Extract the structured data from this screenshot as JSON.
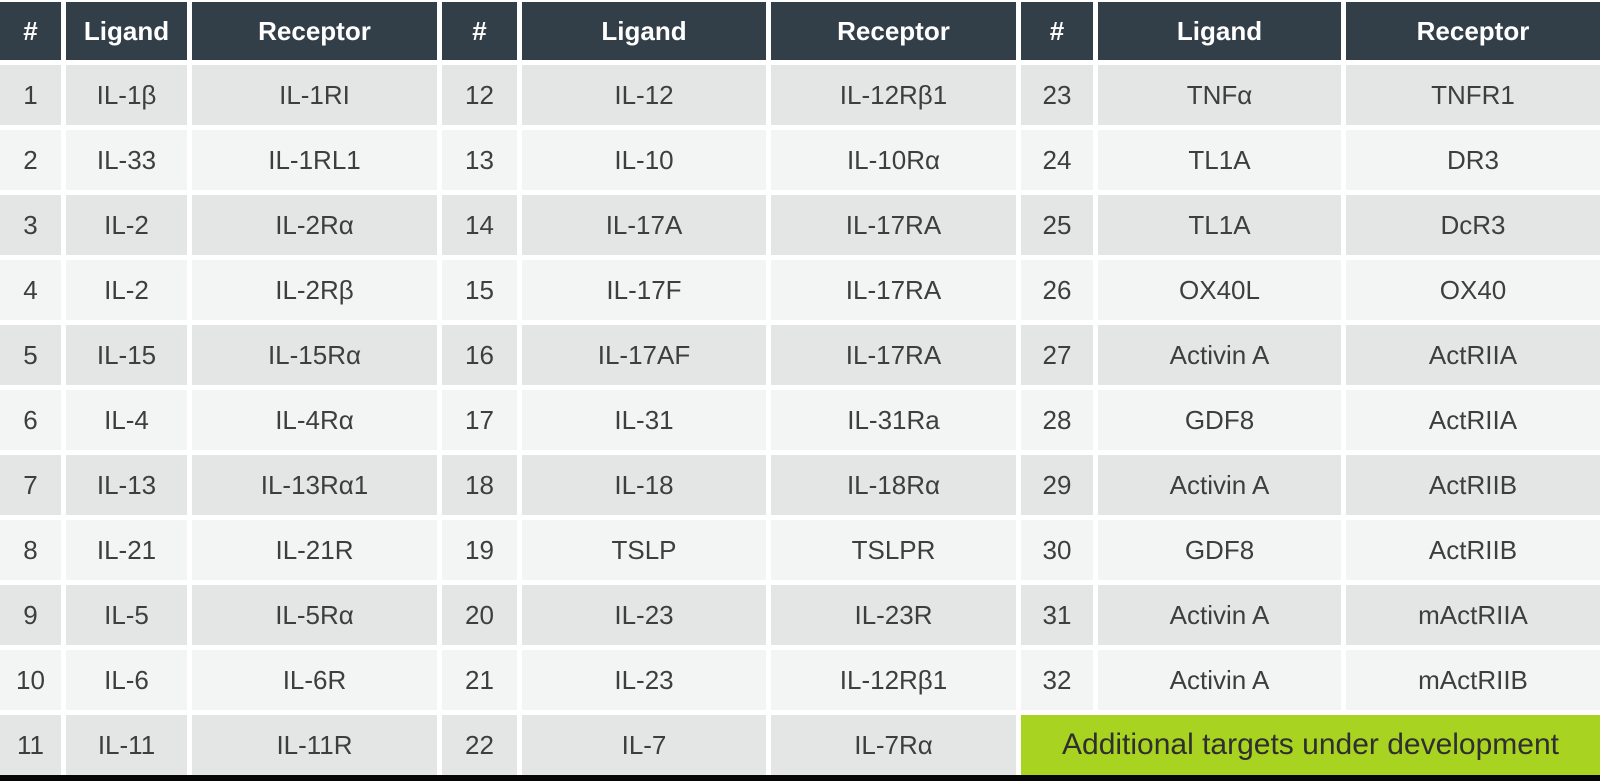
{
  "columns": [
    "#",
    "Ligand",
    "Receptor"
  ],
  "groups": [
    {
      "rows": [
        [
          "1",
          "IL-1β",
          "IL-1RI"
        ],
        [
          "2",
          "IL-33",
          "IL-1RL1"
        ],
        [
          "3",
          "IL-2",
          "IL-2Rα"
        ],
        [
          "4",
          "IL-2",
          "IL-2Rβ"
        ],
        [
          "5",
          "IL-15",
          "IL-15Rα"
        ],
        [
          "6",
          "IL-4",
          "IL-4Rα"
        ],
        [
          "7",
          "IL-13",
          "IL-13Rα1"
        ],
        [
          "8",
          "IL-21",
          "IL-21R"
        ],
        [
          "9",
          "IL-5",
          "IL-5Rα"
        ],
        [
          "10",
          "IL-6",
          "IL-6R"
        ],
        [
          "11",
          "IL-11",
          "IL-11R"
        ]
      ]
    },
    {
      "rows": [
        [
          "12",
          "IL-12",
          "IL-12Rβ1"
        ],
        [
          "13",
          "IL-10",
          "IL-10Rα"
        ],
        [
          "14",
          "IL-17A",
          "IL-17RA"
        ],
        [
          "15",
          "IL-17F",
          "IL-17RA"
        ],
        [
          "16",
          "IL-17AF",
          "IL-17RA"
        ],
        [
          "17",
          "IL-31",
          "IL-31Ra"
        ],
        [
          "18",
          "IL-18",
          "IL-18Rα"
        ],
        [
          "19",
          "TSLP",
          "TSLPR"
        ],
        [
          "20",
          "IL-23",
          "IL-23R"
        ],
        [
          "21",
          "IL-23",
          "IL-12Rβ1"
        ],
        [
          "22",
          "IL-7",
          "IL-7Rα"
        ]
      ]
    },
    {
      "rows": [
        [
          "23",
          "TNFα",
          "TNFR1"
        ],
        [
          "24",
          "TL1A",
          "DR3"
        ],
        [
          "25",
          "TL1A",
          "DcR3"
        ],
        [
          "26",
          "OX40L",
          "OX40"
        ],
        [
          "27",
          "Activin A",
          "ActRIIA"
        ],
        [
          "28",
          "GDF8",
          "ActRIIA"
        ],
        [
          "29",
          "Activin A",
          "ActRIIB"
        ],
        [
          "30",
          "GDF8",
          "ActRIIB"
        ],
        [
          "31",
          "Activin A",
          "mActRIIA"
        ],
        [
          "32",
          "Activin A",
          "mActRIIB"
        ]
      ],
      "banner": "Additional targets under development"
    }
  ],
  "colors": {
    "header_bg": "#333F48",
    "header_text": "#FFFFFF",
    "row_stripe_dark": "#E4E5E5",
    "row_stripe_light": "#F3F4F4",
    "banner_bg": "#A9D321",
    "cell_text": "#3E3E3E",
    "bottom_border": "#060606"
  },
  "chart_data": {
    "type": "table",
    "columns": [
      "#",
      "Ligand",
      "Receptor",
      "#",
      "Ligand",
      "Receptor",
      "#",
      "Ligand",
      "Receptor"
    ],
    "rows": [
      [
        "1",
        "IL-1β",
        "IL-1RI",
        "12",
        "IL-12",
        "IL-12Rβ1",
        "23",
        "TNFα",
        "TNFR1"
      ],
      [
        "2",
        "IL-33",
        "IL-1RL1",
        "13",
        "IL-10",
        "IL-10Rα",
        "24",
        "TL1A",
        "DR3"
      ],
      [
        "3",
        "IL-2",
        "IL-2Rα",
        "14",
        "IL-17A",
        "IL-17RA",
        "25",
        "TL1A",
        "DcR3"
      ],
      [
        "4",
        "IL-2",
        "IL-2Rβ",
        "15",
        "IL-17F",
        "IL-17RA",
        "26",
        "OX40L",
        "OX40"
      ],
      [
        "5",
        "IL-15",
        "IL-15Rα",
        "16",
        "IL-17AF",
        "IL-17RA",
        "27",
        "Activin A",
        "ActRIIA"
      ],
      [
        "6",
        "IL-4",
        "IL-4Rα",
        "17",
        "IL-31",
        "IL-31Ra",
        "28",
        "GDF8",
        "ActRIIA"
      ],
      [
        "7",
        "IL-13",
        "IL-13Rα1",
        "18",
        "IL-18",
        "IL-18Rα",
        "29",
        "Activin A",
        "ActRIIB"
      ],
      [
        "8",
        "IL-21",
        "IL-21R",
        "19",
        "TSLP",
        "TSLPR",
        "30",
        "GDF8",
        "ActRIIB"
      ],
      [
        "9",
        "IL-5",
        "IL-5Rα",
        "20",
        "IL-23",
        "IL-23R",
        "31",
        "Activin A",
        "mActRIIA"
      ],
      [
        "10",
        "IL-6",
        "IL-6R",
        "21",
        "IL-23",
        "IL-12Rβ1",
        "32",
        "Activin A",
        "mActRIIB"
      ],
      [
        "11",
        "IL-11",
        "IL-11R",
        "22",
        "IL-7",
        "IL-7Rα",
        "",
        "Additional targets under development",
        ""
      ]
    ],
    "title": "",
    "annotations": [
      "Additional targets under development"
    ],
    "legend_position": "none",
    "grid": false
  }
}
